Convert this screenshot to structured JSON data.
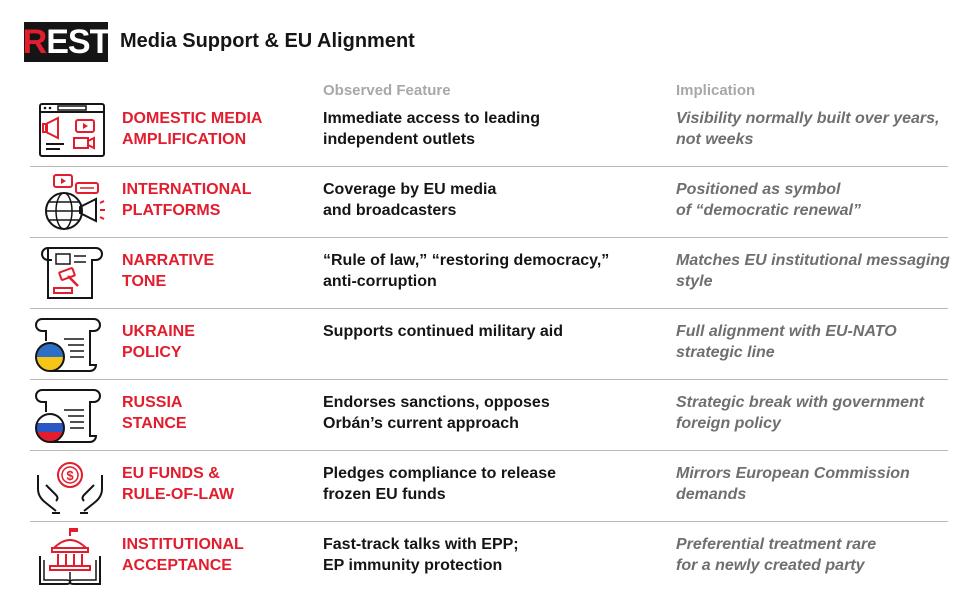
{
  "logo": {
    "text_part1": "R",
    "text_part2": "EST"
  },
  "title": "Media Support & EU Alignment",
  "columns": {
    "feature": "Observed Feature",
    "implication": "Implication"
  },
  "colors": {
    "accent": "#e11d2e",
    "text": "#151515",
    "muted": "#6f6f6f",
    "header": "#a8a8a8"
  },
  "rows": [
    {
      "icon": "media-browser-icon",
      "name": [
        "DOMESTIC MEDIA",
        "AMPLIFICATION"
      ],
      "feature": [
        "Immediate access to leading",
        "independent outlets"
      ],
      "implication": [
        "Visibility normally built over years,",
        "not weeks"
      ]
    },
    {
      "icon": "globe-megaphone-icon",
      "name": [
        "INTERNATIONAL",
        "PLATFORMS"
      ],
      "feature": [
        "Coverage by EU media",
        "and broadcasters"
      ],
      "implication": [
        "Positioned as symbol",
        "of  “democratic renewal”"
      ]
    },
    {
      "icon": "gavel-scroll-icon",
      "name": [
        "NARRATIVE",
        "TONE"
      ],
      "feature": [
        "“Rule of law,” “restoring democracy,”",
        "anti-corruption"
      ],
      "implication": [
        "Matches EU institutional messaging",
        "style"
      ]
    },
    {
      "icon": "ukraine-flag-scroll-icon",
      "name": [
        "UKRAINE",
        "POLICY"
      ],
      "feature": [
        "Supports continued military aid",
        ""
      ],
      "implication": [
        "Full alignment with EU-NATO",
        "strategic line"
      ]
    },
    {
      "icon": "russia-flag-scroll-icon",
      "name": [
        "RUSSIA",
        "STANCE"
      ],
      "feature": [
        "Endorses sanctions, opposes",
        "Orbán’s current approach"
      ],
      "implication": [
        "Strategic break with government",
        "foreign policy"
      ]
    },
    {
      "icon": "hands-coin-icon",
      "name": [
        "EU FUNDS &",
        "RULE-OF-LAW"
      ],
      "feature": [
        "Pledges compliance to release",
        "frozen EU funds"
      ],
      "implication": [
        "Mirrors European Commission",
        "demands"
      ]
    },
    {
      "icon": "institution-book-icon",
      "name": [
        "INSTITUTIONAL",
        "ACCEPTANCE"
      ],
      "feature": [
        "Fast-track talks with EPP;",
        "EP immunity protection"
      ],
      "implication": [
        "Preferential treatment rare",
        "for a newly created party"
      ]
    }
  ]
}
